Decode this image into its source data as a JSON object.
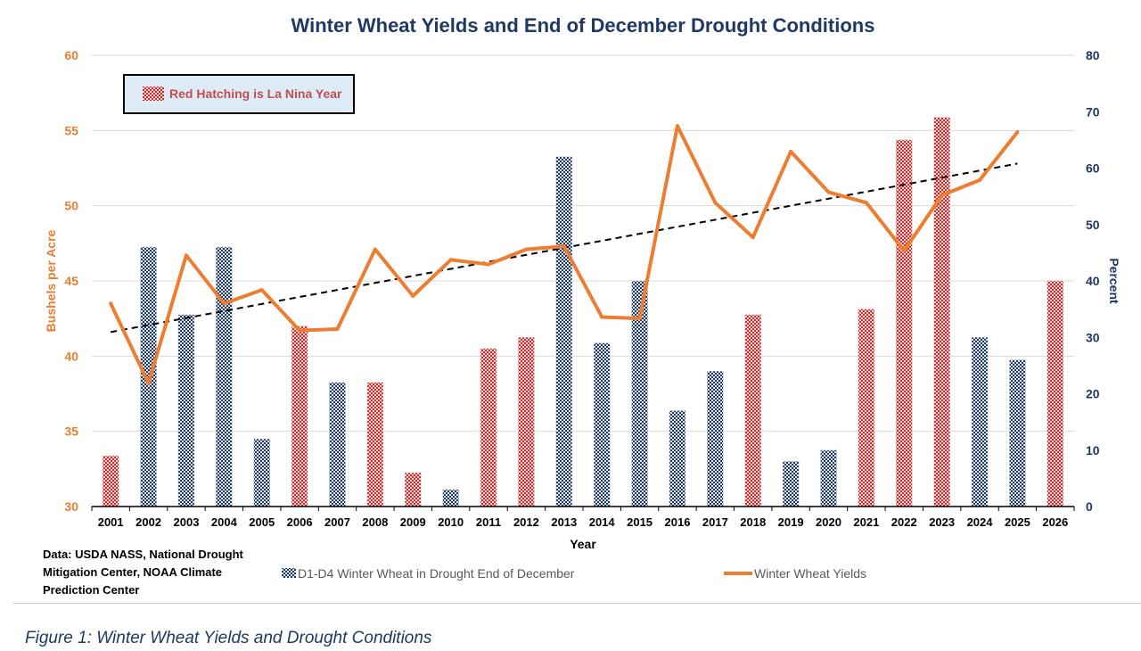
{
  "chart_data": {
    "type": "bar+line",
    "title": "Winter Wheat Yields and End of December Drought Conditions",
    "xlabel": "Year",
    "ylabel_left": "Bushels per Acre",
    "ylabel_right": "Percent",
    "ylim_left": [
      30,
      60
    ],
    "ylim_right": [
      0,
      80
    ],
    "yticks_left": [
      30,
      35,
      40,
      45,
      50,
      55,
      60
    ],
    "yticks_right": [
      0,
      10,
      20,
      30,
      40,
      50,
      60,
      70,
      80
    ],
    "grid": true,
    "categories": [
      "2001",
      "2002",
      "2003",
      "2004",
      "2005",
      "2006",
      "2007",
      "2008",
      "2009",
      "2010",
      "2011",
      "2012",
      "2013",
      "2014",
      "2015",
      "2016",
      "2017",
      "2018",
      "2019",
      "2020",
      "2021",
      "2022",
      "2023",
      "2024",
      "2025",
      "2026"
    ],
    "series": [
      {
        "name": "D1-D4 Winter Wheat in Drought End of December",
        "type": "bar",
        "axis": "right",
        "values": [
          9,
          46,
          34,
          46,
          12,
          32,
          22,
          22,
          6,
          3,
          28,
          30,
          62,
          29,
          40,
          17,
          24,
          34,
          8,
          10,
          35,
          65,
          69,
          30,
          26,
          40
        ],
        "la_nina": [
          true,
          false,
          false,
          false,
          false,
          true,
          false,
          true,
          true,
          false,
          true,
          true,
          false,
          false,
          false,
          false,
          false,
          true,
          false,
          false,
          true,
          true,
          true,
          false,
          false,
          true
        ]
      },
      {
        "name": "Winter Wheat Yields",
        "type": "line",
        "axis": "left",
        "values": [
          43.5,
          38.2,
          46.7,
          43.5,
          44.4,
          41.7,
          41.8,
          47.1,
          44.0,
          46.4,
          46.1,
          47.1,
          47.3,
          42.6,
          42.5,
          55.3,
          50.2,
          47.9,
          53.6,
          50.9,
          50.2,
          47.0,
          50.7,
          51.7,
          54.9,
          null
        ]
      }
    ],
    "trendline": {
      "style": "dashed",
      "from": [
        "2001",
        41.6
      ],
      "to": [
        "2025",
        52.8
      ]
    },
    "annotation": "Red Hatching is La Nina Year",
    "legend_placement": "bottom",
    "source": "Data: USDA NASS, National Drought Mitigation Center, NOAA Climate Prediction Center",
    "colors": {
      "bar_blue": "#1f3a5f",
      "bar_red": "#d62828",
      "line": "#ed7d31",
      "title": "#1f3864",
      "left_axis": "#ed7d31",
      "right_axis": "#1f3864"
    }
  },
  "caption": "Figure 1: Winter Wheat Yields and Drought Conditions"
}
